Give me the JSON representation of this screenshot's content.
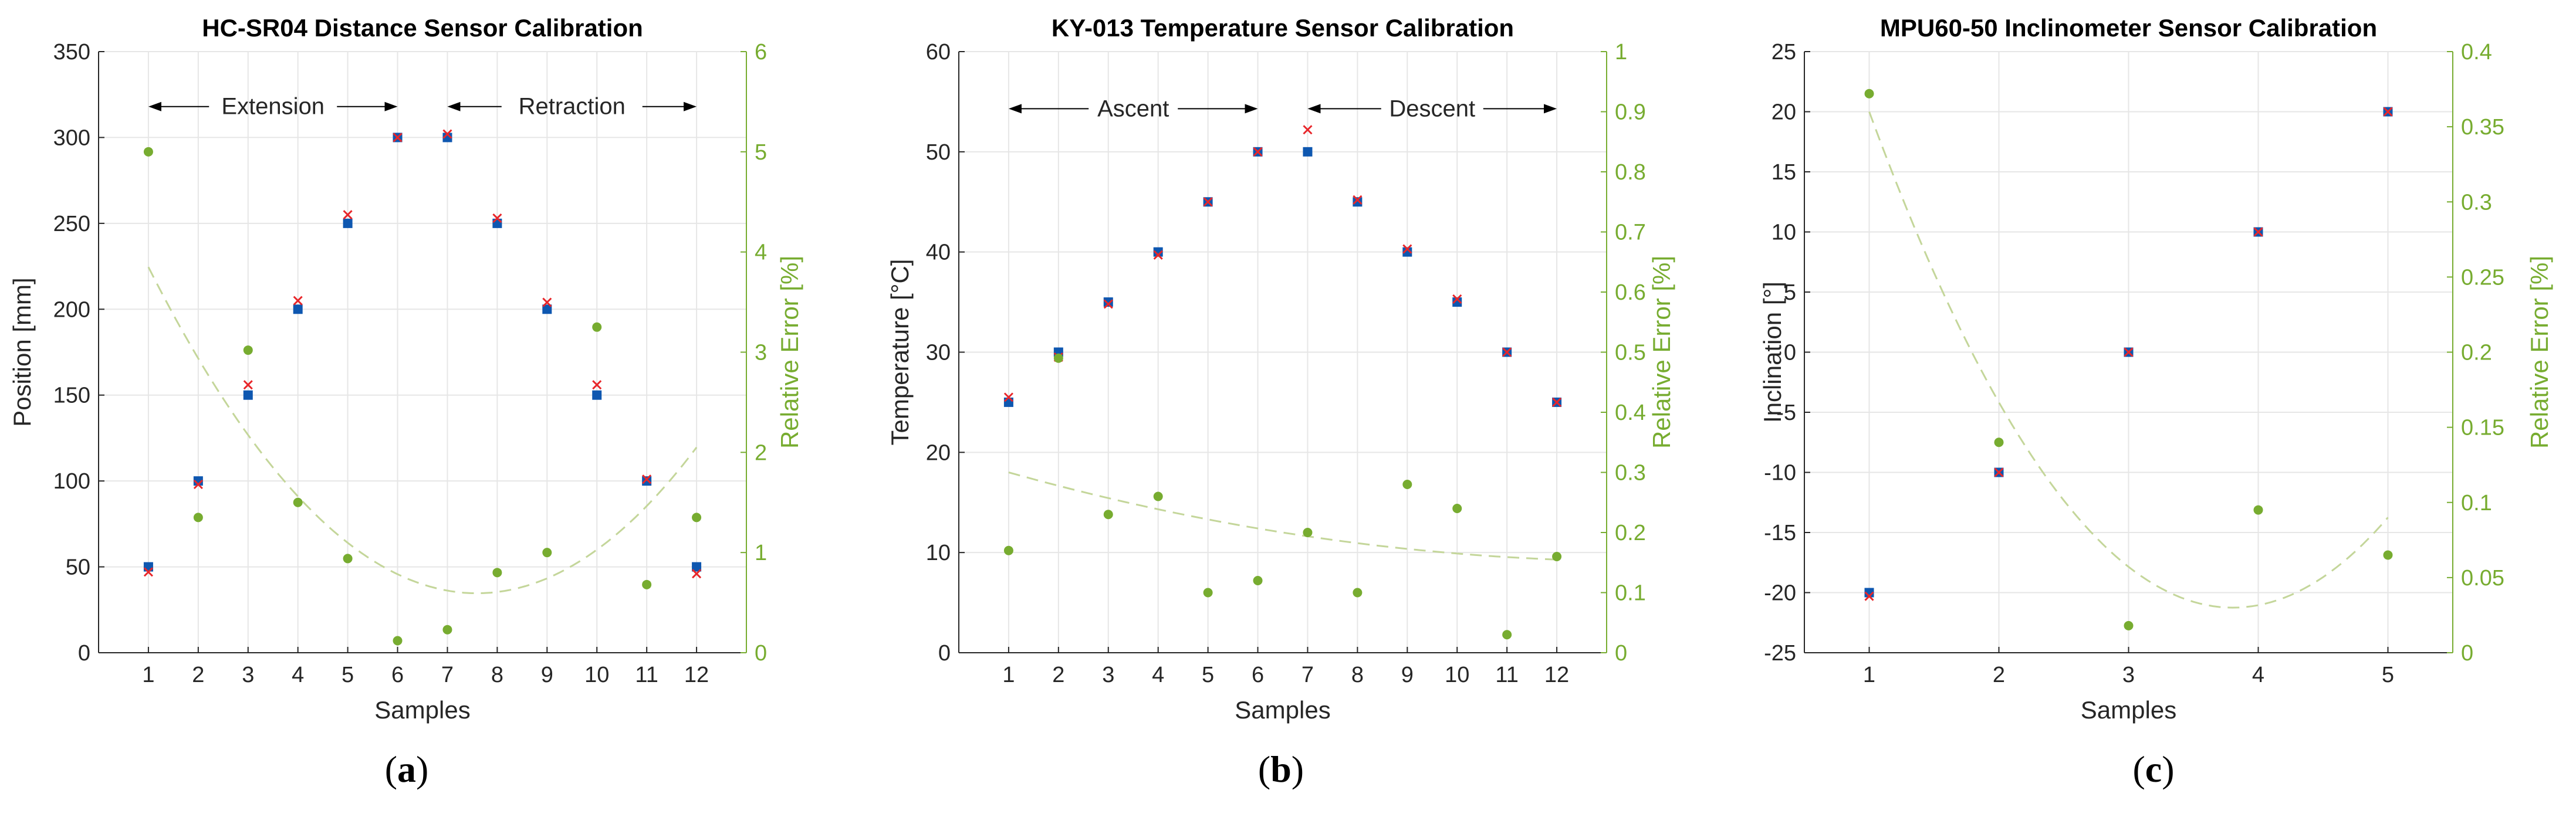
{
  "colors": {
    "measured": "#0e57b0",
    "reference": "#e8262a",
    "error": "#77ac30",
    "fit": "#c4d69a",
    "grid": "#e6e6e6",
    "axis": "#262626"
  },
  "chart_data": [
    {
      "id": "a",
      "type": "scatter",
      "title": "HC-SR04 Distance Sensor Calibration",
      "xlabel": "Samples",
      "ylabel": "Position [mm]",
      "ylabel_right": "Relative Error [%]",
      "xlim": [
        0,
        13
      ],
      "ylim": [
        0,
        350
      ],
      "ylim_right": [
        0,
        6
      ],
      "xticks": [
        1,
        2,
        3,
        4,
        5,
        6,
        7,
        8,
        9,
        10,
        11,
        12
      ],
      "yticks": [
        0,
        50,
        100,
        150,
        200,
        250,
        300,
        350
      ],
      "yticks_right": [
        0,
        1,
        2,
        3,
        4,
        5,
        6
      ],
      "x": [
        1,
        2,
        3,
        4,
        5,
        6,
        7,
        8,
        9,
        10,
        11,
        12
      ],
      "measured": [
        50,
        100,
        150,
        200,
        250,
        300,
        300,
        250,
        200,
        150,
        100,
        50
      ],
      "reference": [
        47,
        98,
        156,
        205,
        255,
        300,
        302,
        253,
        204,
        156,
        101,
        46
      ],
      "relative_error": [
        5.0,
        1.35,
        3.02,
        1.5,
        0.94,
        0.12,
        0.23,
        0.8,
        1.0,
        3.25,
        0.68,
        1.35
      ],
      "fit": {
        "degree": 2,
        "from_x": 1,
        "to_x": 12,
        "points": [
          [
            1,
            3.85
          ],
          [
            7.3,
            0.6
          ],
          [
            12,
            2.05
          ]
        ]
      },
      "annotations": [
        {
          "label": "Extension",
          "from_x": 1,
          "to_x": 6,
          "y": 318
        },
        {
          "label": "Retraction",
          "from_x": 7,
          "to_x": 12,
          "y": 318
        }
      ],
      "subcaption": "a"
    },
    {
      "id": "b",
      "type": "scatter",
      "title": "KY-013 Temperature Sensor Calibration",
      "xlabel": "Samples",
      "ylabel": "Temperature [°C]",
      "ylabel_right": "Relative Error [%]",
      "xlim": [
        0,
        13
      ],
      "ylim": [
        0,
        60
      ],
      "ylim_right": [
        0,
        1
      ],
      "xticks": [
        1,
        2,
        3,
        4,
        5,
        6,
        7,
        8,
        9,
        10,
        11,
        12
      ],
      "yticks": [
        0,
        10,
        20,
        30,
        40,
        50,
        60
      ],
      "yticks_right": [
        0,
        0.1,
        0.2,
        0.3,
        0.4,
        0.5,
        0.6,
        0.7,
        0.8,
        0.9,
        1
      ],
      "x": [
        1,
        2,
        3,
        4,
        5,
        6,
        7,
        8,
        9,
        10,
        11,
        12
      ],
      "measured": [
        25,
        30,
        35,
        40,
        45,
        50,
        50,
        45,
        40,
        35,
        30,
        25
      ],
      "reference": [
        25.5,
        29.5,
        34.8,
        39.7,
        45.0,
        50.0,
        52.2,
        45.2,
        40.3,
        35.3,
        30.0,
        25.0
      ],
      "relative_error": [
        0.17,
        0.49,
        0.23,
        0.26,
        0.1,
        0.12,
        0.2,
        0.1,
        0.28,
        0.24,
        0.03,
        0.16
      ],
      "fit": {
        "degree": 2,
        "from_x": 1,
        "to_x": 12,
        "points": [
          [
            1,
            0.3
          ],
          [
            6.5,
            0.2
          ],
          [
            12,
            0.155
          ]
        ]
      },
      "annotations": [
        {
          "label": "Ascent",
          "from_x": 1,
          "to_x": 6,
          "y": 54.3
        },
        {
          "label": "Descent",
          "from_x": 7,
          "to_x": 12,
          "y": 54.3
        }
      ],
      "subcaption": "b"
    },
    {
      "id": "c",
      "type": "scatter",
      "title": "MPU60-50 Inclinometer Sensor Calibration",
      "xlabel": "Samples",
      "ylabel": "Inclination [°]",
      "ylabel_right": "Relative Error [%]",
      "xlim": [
        0.5,
        5.5
      ],
      "ylim": [
        -25,
        25
      ],
      "ylim_right": [
        0,
        0.4
      ],
      "xticks": [
        1,
        2,
        3,
        4,
        5
      ],
      "yticks": [
        -25,
        -20,
        -15,
        -10,
        -5,
        0,
        5,
        10,
        15,
        20,
        25
      ],
      "yticks_right": [
        0,
        0.05,
        0.1,
        0.15,
        0.2,
        0.25,
        0.3,
        0.35,
        0.4
      ],
      "x": [
        1,
        2,
        3,
        4,
        5
      ],
      "measured": [
        -20,
        -10,
        0,
        10,
        20
      ],
      "reference": [
        -20.3,
        -10,
        0,
        10,
        20
      ],
      "relative_error": [
        0.372,
        0.14,
        0.018,
        0.095,
        0.065
      ],
      "fit": {
        "degree": 2,
        "from_x": 1,
        "to_x": 5,
        "points": [
          [
            1,
            0.36
          ],
          [
            3.8,
            0.03
          ],
          [
            5,
            0.09
          ]
        ]
      },
      "annotations": [],
      "subcaption": "c"
    }
  ]
}
